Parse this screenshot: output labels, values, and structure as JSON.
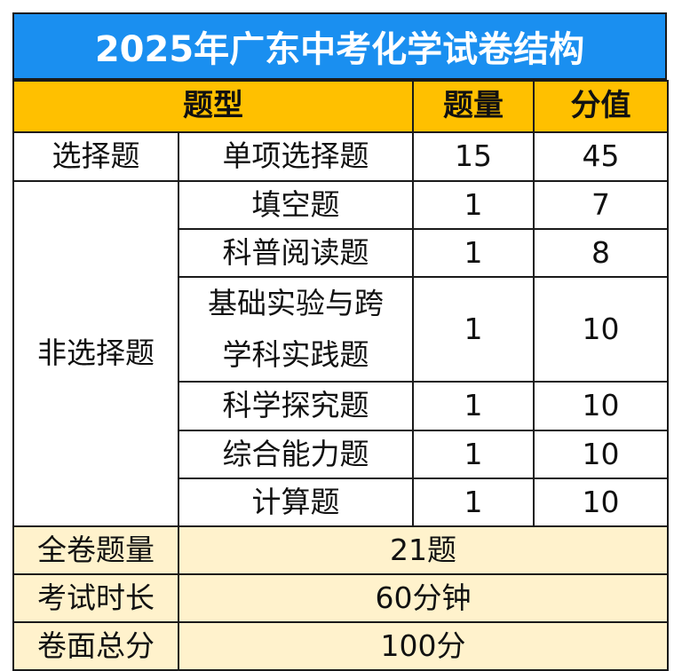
{
  "title": "2025年广东中考化学试卷结构",
  "headers": {
    "type": "题型",
    "count": "题量",
    "score": "分值"
  },
  "rows": [
    {
      "category": "选择题",
      "name": "单项选择题",
      "count": "15",
      "score": "45"
    },
    {
      "category": "非选择题",
      "name": "填空题",
      "count": "1",
      "score": "7"
    },
    {
      "name": "科普阅读题",
      "count": "1",
      "score": "8"
    },
    {
      "name_line1": "基础实验与跨",
      "name_line2": "学科实践题",
      "count": "1",
      "score": "10"
    },
    {
      "name": "科学探究题",
      "count": "1",
      "score": "10"
    },
    {
      "name": "综合能力题",
      "count": "1",
      "score": "10"
    },
    {
      "name": "计算题",
      "count": "1",
      "score": "10"
    }
  ],
  "summary": [
    {
      "label": "全卷题量",
      "value": "21题"
    },
    {
      "label": "考试时长",
      "value": "60分钟"
    },
    {
      "label": "卷面总分",
      "value": "100分"
    }
  ],
  "colors": {
    "title_bg": "#1a8ff0",
    "header_bg": "#ffc000",
    "summary_bg": "#fff2cc"
  }
}
